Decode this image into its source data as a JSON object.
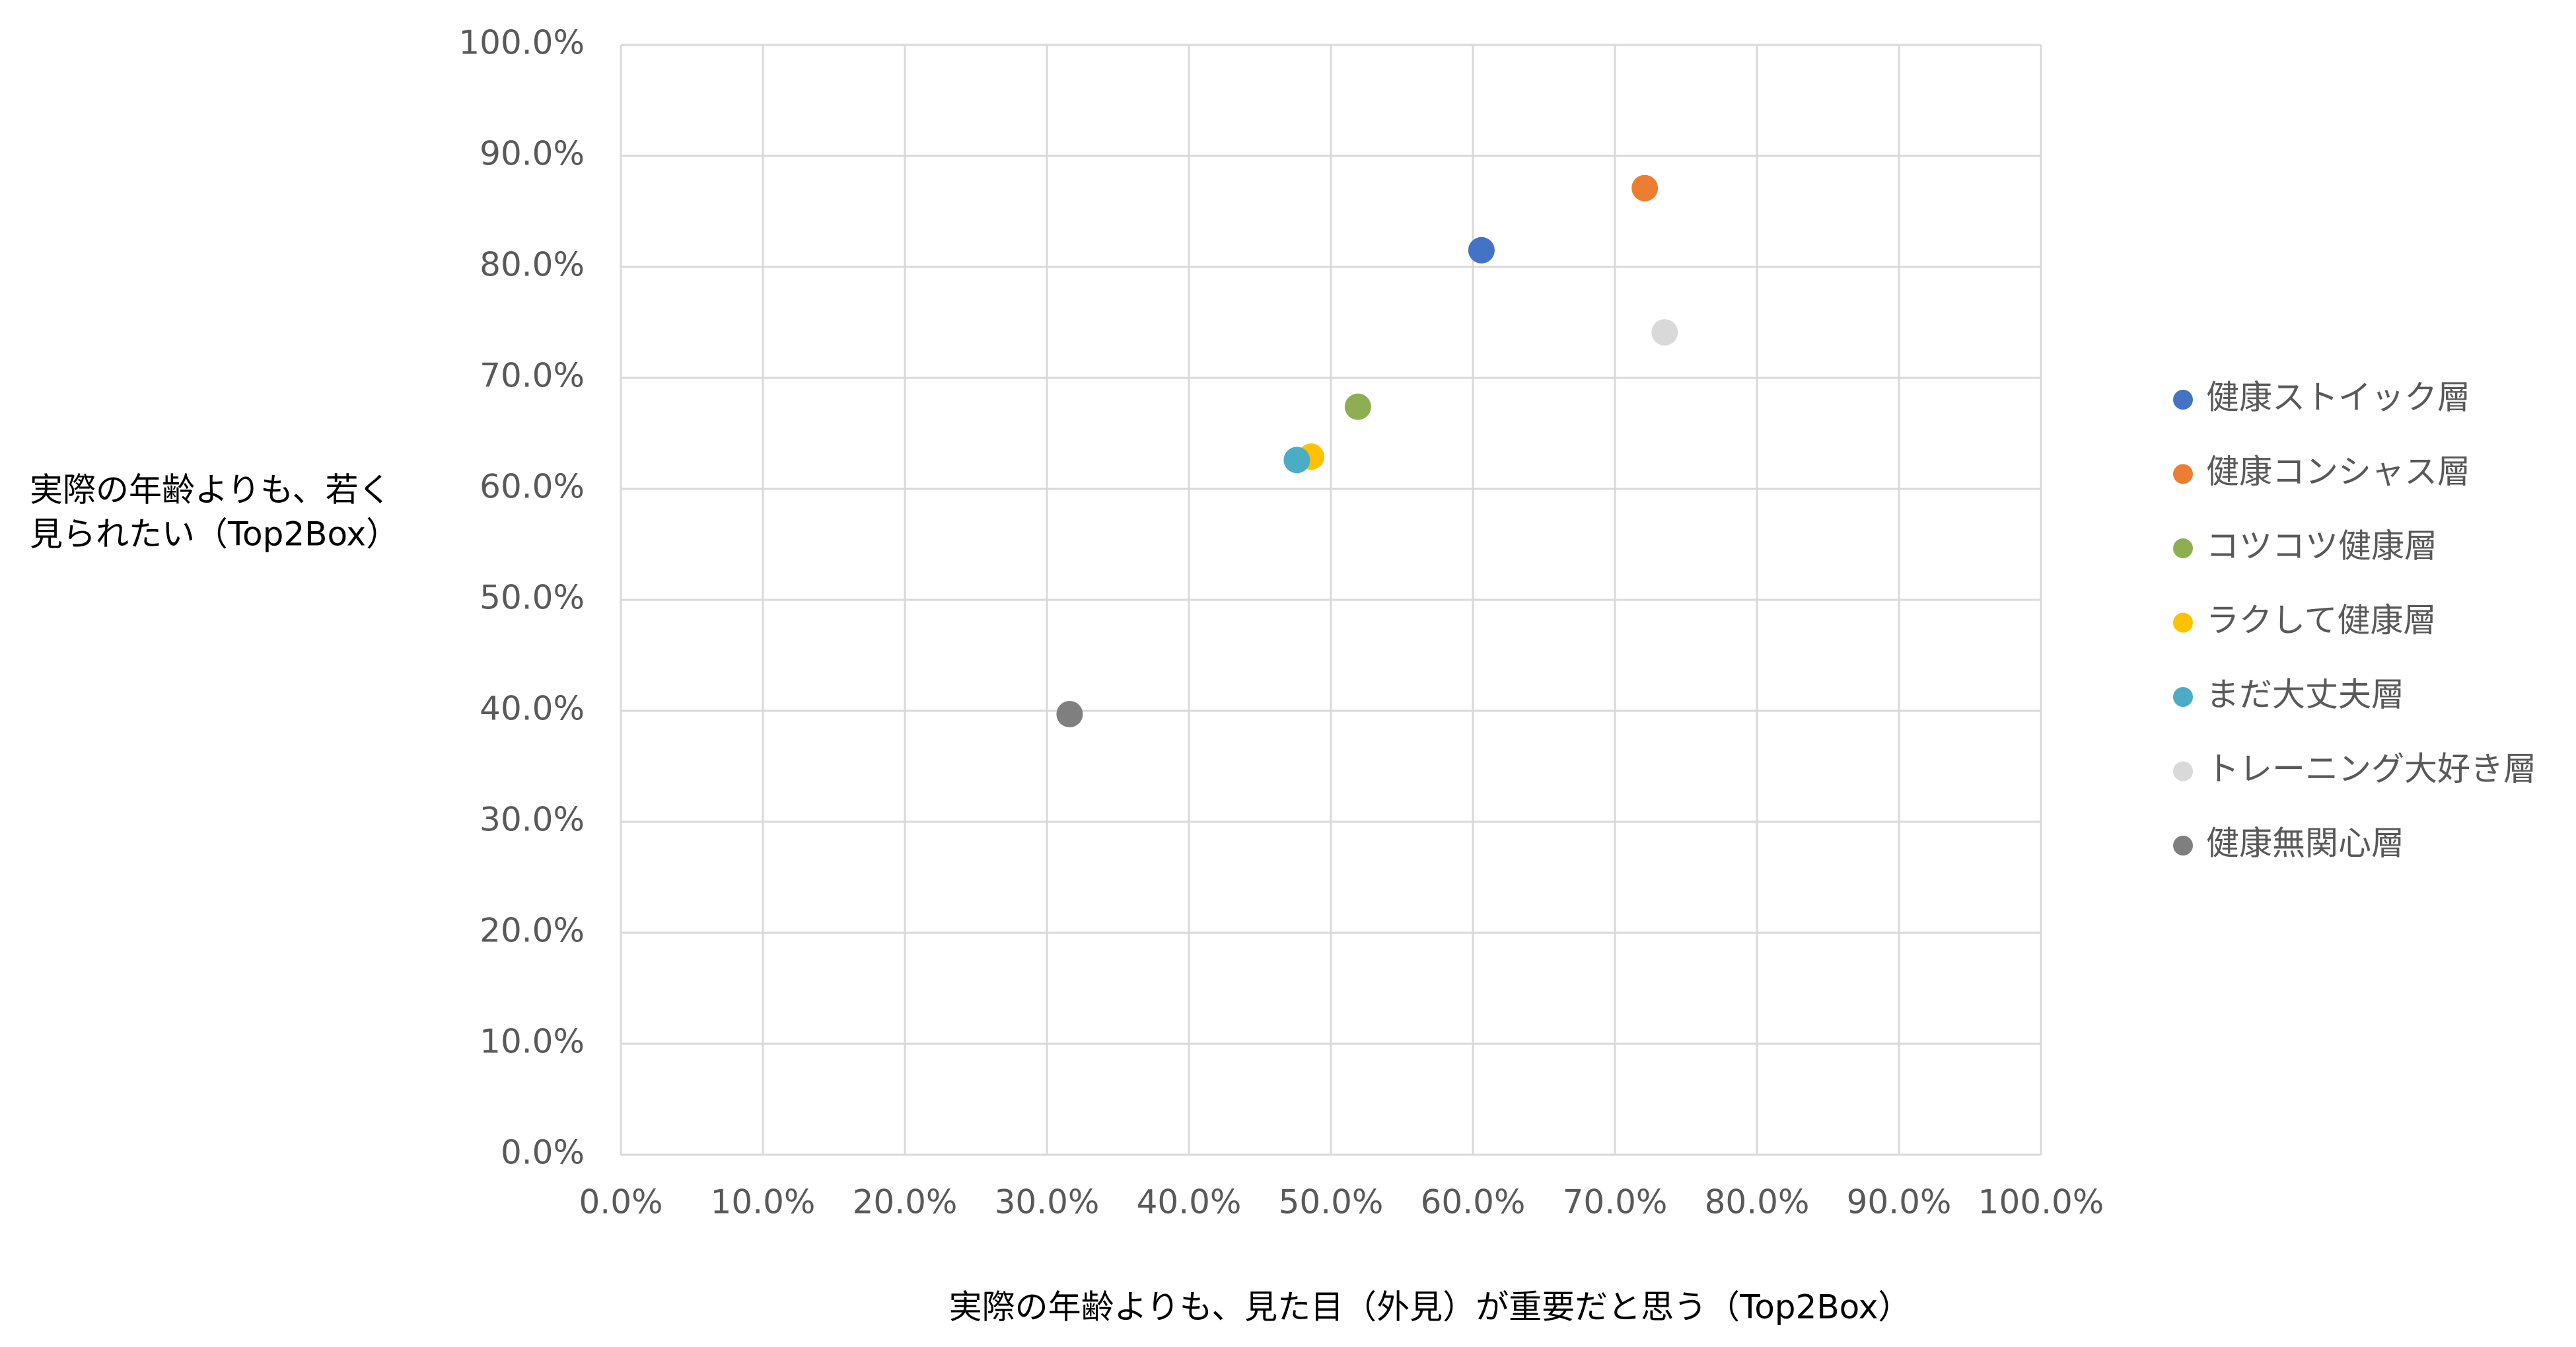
{
  "chart_data": {
    "type": "scatter",
    "x_label": "実際の年齢よりも、見た目（外見）が重要だと思う（Top2Box）",
    "y_label": [
      "実際の年齢よりも、若く",
      "見られたい（Top2Box）"
    ],
    "xlim": [
      0,
      100
    ],
    "ylim": [
      0,
      100
    ],
    "xticks": [
      {
        "value": 0,
        "label": "0.0%"
      },
      {
        "value": 10,
        "label": "10.0%"
      },
      {
        "value": 20,
        "label": "20.0%"
      },
      {
        "value": 30,
        "label": "30.0%"
      },
      {
        "value": 40,
        "label": "40.0%"
      },
      {
        "value": 50,
        "label": "50.0%"
      },
      {
        "value": 60,
        "label": "60.0%"
      },
      {
        "value": 70,
        "label": "70.0%"
      },
      {
        "value": 80,
        "label": "80.0%"
      },
      {
        "value": 90,
        "label": "90.0%"
      },
      {
        "value": 100,
        "label": "100.0%"
      }
    ],
    "yticks": [
      {
        "value": 0,
        "label": "0.0%"
      },
      {
        "value": 10,
        "label": "10.0%"
      },
      {
        "value": 20,
        "label": "20.0%"
      },
      {
        "value": 30,
        "label": "30.0%"
      },
      {
        "value": 40,
        "label": "40.0%"
      },
      {
        "value": 50,
        "label": "50.0%"
      },
      {
        "value": 60,
        "label": "60.0%"
      },
      {
        "value": 70,
        "label": "70.0%"
      },
      {
        "value": 80,
        "label": "80.0%"
      },
      {
        "value": 90,
        "label": "90.0%"
      },
      {
        "value": 100,
        "label": "100.0%"
      }
    ],
    "grid": true,
    "legend": "right",
    "series": [
      {
        "name": "健康ストイック層",
        "color": "#4472c4",
        "x": [
          60.6
        ],
        "values": [
          81.5
        ]
      },
      {
        "name": "健康コンシャス層",
        "color": "#ed7d31",
        "x": [
          72.1
        ],
        "values": [
          87.1
        ]
      },
      {
        "name": "コツコツ健康層",
        "color": "#8fae52",
        "x": [
          51.9
        ],
        "values": [
          67.4
        ]
      },
      {
        "name": "ラクして健康層",
        "color": "#ffc000",
        "x": [
          48.6
        ],
        "values": [
          62.9
        ]
      },
      {
        "name": "まだ大丈夫層",
        "color": "#4bacc6",
        "x": [
          47.6
        ],
        "values": [
          62.6
        ]
      },
      {
        "name": "トレーニング大好き層",
        "color": "#d9d9d9",
        "x": [
          73.5
        ],
        "values": [
          74.1
        ]
      },
      {
        "name": "健康無関心層",
        "color": "#7f7f7f",
        "x": [
          31.6
        ],
        "values": [
          39.7
        ]
      }
    ]
  }
}
